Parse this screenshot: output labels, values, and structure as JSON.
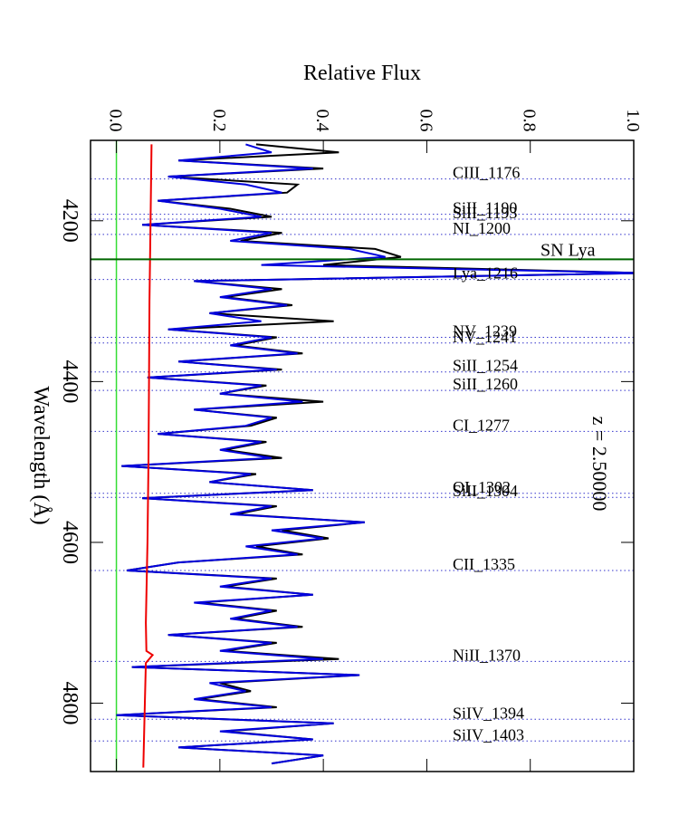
{
  "chart_data": {
    "type": "line",
    "xlabel": "Relative Flux",
    "ylabel": "Wavelength (Å)",
    "xlim": [
      -0.05,
      1.0
    ],
    "xticks": [
      {
        "value": 0,
        "label": "0.0"
      },
      0.2,
      0.4,
      0.6,
      0.8,
      {
        "value": 1,
        "label": "1.0"
      }
    ],
    "ylim": [
      4100,
      4885
    ],
    "yticks": [
      4200,
      4400,
      4600,
      4800
    ],
    "zero_line": {
      "value": 0,
      "color": "#33dd33"
    },
    "series": [
      {
        "color": "#000000",
        "x": [
          4105,
          4115,
          4125,
          4135,
          4145,
          4155,
          4165,
          4175,
          4185,
          4195,
          4205,
          4215,
          4225,
          4235,
          4245,
          4255,
          4265,
          4275,
          4285,
          4295,
          4305,
          4315,
          4325,
          4335,
          4345,
          4355,
          4365,
          4375,
          4385,
          4395,
          4405,
          4415,
          4425,
          4435,
          4445,
          4455,
          4465,
          4475,
          4485,
          4495,
          4505,
          4515,
          4525,
          4535,
          4545,
          4555,
          4565,
          4575,
          4585,
          4595,
          4605,
          4615,
          4625,
          4635,
          4645,
          4655,
          4665,
          4675,
          4685,
          4695,
          4705,
          4715,
          4725,
          4735,
          4745,
          4755,
          4765,
          4775,
          4785,
          4795,
          4805,
          4815,
          4825,
          4835,
          4845,
          4855,
          4865,
          4875
        ],
        "values": [
          0.27,
          0.43,
          0.12,
          0.4,
          0.1,
          0.35,
          0.33,
          0.08,
          0.22,
          0.3,
          0.05,
          0.32,
          0.24,
          0.5,
          0.55,
          0.4,
          1.02,
          0.15,
          0.32,
          0.21,
          0.34,
          0.18,
          0.42,
          0.1,
          0.31,
          0.23,
          0.36,
          0.12,
          0.32,
          0.06,
          0.29,
          0.2,
          0.4,
          0.15,
          0.31,
          0.26,
          0.08,
          0.29,
          0.21,
          0.32,
          0.01,
          0.27,
          0.18,
          0.38,
          0.05,
          0.31,
          0.23,
          0.48,
          0.32,
          0.41,
          0.27,
          0.36,
          0.12,
          0.02,
          0.31,
          0.21,
          0.38,
          0.16,
          0.31,
          0.23,
          0.36,
          0.1,
          0.31,
          0.21,
          0.43,
          0.03,
          0.47,
          0.2,
          0.26,
          0.16,
          0.31,
          0.0,
          0.42,
          0.21,
          0.38,
          0.12,
          0.4,
          0.3
        ]
      },
      {
        "color": "#0000dd",
        "x": [
          4105,
          4115,
          4125,
          4135,
          4145,
          4155,
          4165,
          4175,
          4185,
          4195,
          4205,
          4215,
          4225,
          4235,
          4245,
          4255,
          4265,
          4275,
          4285,
          4295,
          4305,
          4315,
          4325,
          4335,
          4345,
          4355,
          4365,
          4375,
          4385,
          4395,
          4405,
          4415,
          4425,
          4435,
          4445,
          4455,
          4465,
          4475,
          4485,
          4495,
          4505,
          4515,
          4525,
          4535,
          4545,
          4555,
          4565,
          4575,
          4585,
          4595,
          4605,
          4615,
          4625,
          4635,
          4645,
          4655,
          4665,
          4675,
          4685,
          4695,
          4705,
          4715,
          4725,
          4735,
          4745,
          4755,
          4765,
          4775,
          4785,
          4795,
          4805,
          4815,
          4825,
          4835,
          4845,
          4855,
          4865,
          4875
        ],
        "values": [
          0.25,
          0.3,
          0.12,
          0.38,
          0.1,
          0.25,
          0.32,
          0.08,
          0.2,
          0.28,
          0.05,
          0.3,
          0.22,
          0.45,
          0.52,
          0.28,
          1.02,
          0.15,
          0.3,
          0.2,
          0.33,
          0.18,
          0.28,
          0.1,
          0.3,
          0.22,
          0.35,
          0.12,
          0.31,
          0.06,
          0.28,
          0.2,
          0.36,
          0.15,
          0.3,
          0.25,
          0.08,
          0.28,
          0.2,
          0.3,
          0.01,
          0.26,
          0.18,
          0.38,
          0.05,
          0.3,
          0.22,
          0.48,
          0.3,
          0.4,
          0.25,
          0.35,
          0.12,
          0.02,
          0.3,
          0.2,
          0.38,
          0.15,
          0.3,
          0.22,
          0.35,
          0.1,
          0.3,
          0.2,
          0.4,
          0.03,
          0.47,
          0.18,
          0.25,
          0.15,
          0.3,
          0.0,
          0.42,
          0.2,
          0.38,
          0.12,
          0.4,
          0.3
        ]
      },
      {
        "color": "#ee0000",
        "x": [
          4105,
          4200,
          4300,
          4400,
          4500,
          4600,
          4700,
          4735,
          4740,
          4750,
          4800,
          4880
        ],
        "values": [
          0.068,
          0.066,
          0.064,
          0.063,
          0.062,
          0.06,
          0.057,
          0.058,
          0.07,
          0.057,
          0.055,
          0.052
        ]
      }
    ],
    "lines": [
      {
        "label": "CIII_1176",
        "wavelength": 4148
      },
      {
        "label": "SiII_1190",
        "wavelength": 4192
      },
      {
        "label": "SiII_1193",
        "wavelength": 4198
      },
      {
        "label": "NI_1200",
        "wavelength": 4217
      },
      {
        "label": "Lya_1216",
        "wavelength": 4273
      },
      {
        "label": "NV_1239",
        "wavelength": 4345
      },
      {
        "label": "NV_1241",
        "wavelength": 4352
      },
      {
        "label": "SiII_1254",
        "wavelength": 4388
      },
      {
        "label": "SiII_1260",
        "wavelength": 4411
      },
      {
        "label": "CI_1277",
        "wavelength": 4462
      },
      {
        "label": "OI_1302",
        "wavelength": 4539
      },
      {
        "label": "SiII_1304",
        "wavelength": 4544
      },
      {
        "label": "CII_1335",
        "wavelength": 4635
      },
      {
        "label": "NiII_1370",
        "wavelength": 4748
      },
      {
        "label": "SiIV_1394",
        "wavelength": 4820
      },
      {
        "label": "SiIV_1403",
        "wavelength": 4847
      }
    ],
    "sn_line": {
      "label": "SN Lya",
      "wavelength": 4248,
      "color": "#006600"
    },
    "redshift_label": {
      "text": "z = 2.50000",
      "color": "#ee0000"
    }
  }
}
